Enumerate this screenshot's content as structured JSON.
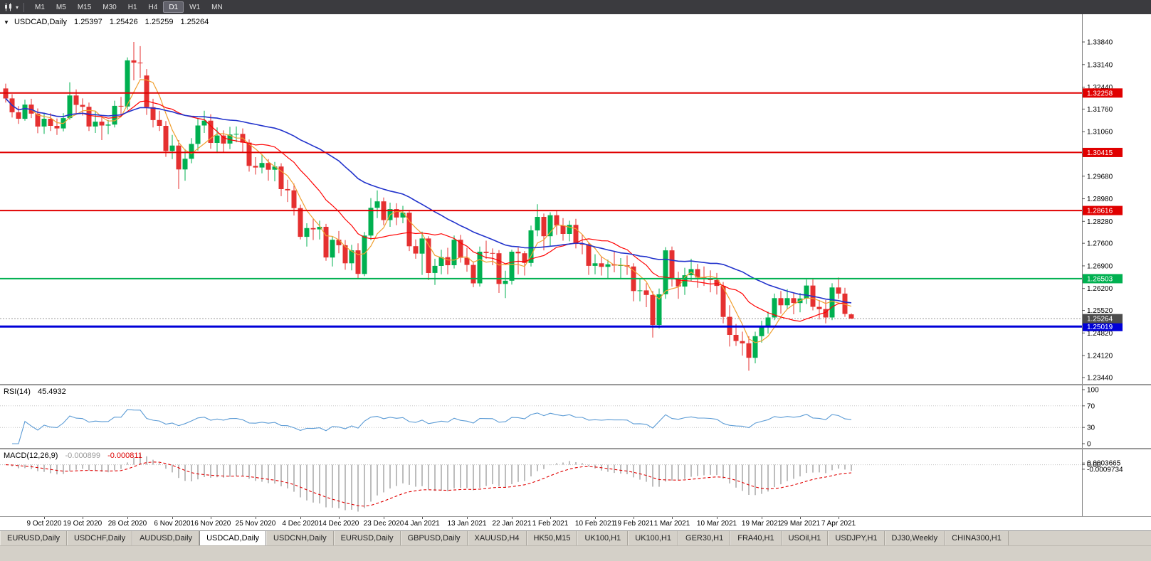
{
  "toolbar": {
    "chart_type_icon": "candlestick-chart-icon",
    "dropdown_icon": "chevron-down-icon",
    "timeframes": [
      "M1",
      "M5",
      "M15",
      "M30",
      "H1",
      "H4",
      "D1",
      "W1",
      "MN"
    ],
    "active_timeframe": "D1"
  },
  "header": {
    "symbol": "USDCAD,Daily",
    "open": "1.25397",
    "high": "1.25426",
    "low": "1.25259",
    "close": "1.25264"
  },
  "price_axis": {
    "min": 1.2324,
    "max": 1.347,
    "labels": [
      "1.33840",
      "1.33140",
      "1.32440",
      "1.31760",
      "1.31060",
      "1.30360",
      "1.29680",
      "1.28980",
      "1.28280",
      "1.27600",
      "1.26900",
      "1.26200",
      "1.25520",
      "1.24820",
      "1.24120",
      "1.23440"
    ]
  },
  "hlines": [
    {
      "value": 1.32258,
      "label": "1.32258",
      "color": "#e00000",
      "width": 2
    },
    {
      "value": 1.30415,
      "label": "1.30415",
      "color": "#e00000",
      "width": 2
    },
    {
      "value": 1.28616,
      "label": "1.28616",
      "color": "#e00000",
      "width": 2
    },
    {
      "value": 1.26503,
      "label": "1.26503",
      "color": "#00b050",
      "width": 2
    },
    {
      "value": 1.25019,
      "label": "1.25019",
      "color": "#0000d8",
      "width": 3
    }
  ],
  "current_price": {
    "value": 1.25264,
    "label": "1.25264",
    "tag_color": "#4d4d4d"
  },
  "chart_data": {
    "type": "candlestick",
    "symbol": "USDCAD",
    "timeframe": "Daily",
    "up_color": "#00b050",
    "down_color": "#e53030",
    "moving_averages": [
      {
        "period": 5,
        "color": "#f0a030",
        "width": 1.2
      },
      {
        "period": 13,
        "color": "#ff0000",
        "width": 1.2
      },
      {
        "period": 34,
        "color": "#2233cc",
        "width": 1.6
      }
    ],
    "candles": [
      [
        1.324,
        1.3255,
        1.3196,
        1.3209
      ],
      [
        1.3209,
        1.3222,
        1.315,
        1.3166
      ],
      [
        1.3166,
        1.3185,
        1.313,
        1.3146
      ],
      [
        1.3146,
        1.3205,
        1.314,
        1.319
      ],
      [
        1.319,
        1.3208,
        1.3148,
        1.3162
      ],
      [
        1.3162,
        1.3178,
        1.3101,
        1.3122
      ],
      [
        1.3122,
        1.3162,
        1.3099,
        1.3146
      ],
      [
        1.3146,
        1.3163,
        1.3108,
        1.3124
      ],
      [
        1.3124,
        1.3147,
        1.3096,
        1.3116
      ],
      [
        1.3116,
        1.3163,
        1.3107,
        1.3148
      ],
      [
        1.3148,
        1.3259,
        1.3143,
        1.3218
      ],
      [
        1.3218,
        1.3237,
        1.3163,
        1.3189
      ],
      [
        1.3189,
        1.3209,
        1.3156,
        1.3183
      ],
      [
        1.3183,
        1.3196,
        1.3108,
        1.3122
      ],
      [
        1.3122,
        1.3168,
        1.3102,
        1.3137
      ],
      [
        1.3137,
        1.3154,
        1.308,
        1.3125
      ],
      [
        1.3125,
        1.3142,
        1.3098,
        1.3128
      ],
      [
        1.3128,
        1.3202,
        1.3119,
        1.3186
      ],
      [
        1.3186,
        1.3214,
        1.3158,
        1.3184
      ],
      [
        1.3184,
        1.3336,
        1.3174,
        1.3327
      ],
      [
        1.3327,
        1.3384,
        1.3265,
        1.332
      ],
      [
        1.332,
        1.3371,
        1.3272,
        1.3319
      ],
      [
        1.328,
        1.33,
        1.3158,
        1.3182
      ],
      [
        1.3182,
        1.3208,
        1.3119,
        1.3142
      ],
      [
        1.3142,
        1.3171,
        1.3108,
        1.3124
      ],
      [
        1.3124,
        1.3139,
        1.3028,
        1.3046
      ],
      [
        1.3046,
        1.3096,
        1.3021,
        1.3063
      ],
      [
        1.3063,
        1.308,
        1.2928,
        1.2989
      ],
      [
        1.2989,
        1.3052,
        1.2954,
        1.3022
      ],
      [
        1.3022,
        1.3086,
        1.3008,
        1.3068
      ],
      [
        1.3068,
        1.3148,
        1.3047,
        1.3125
      ],
      [
        1.3125,
        1.3171,
        1.3102,
        1.314
      ],
      [
        1.314,
        1.316,
        1.3053,
        1.3071
      ],
      [
        1.3071,
        1.3119,
        1.304,
        1.3094
      ],
      [
        1.3094,
        1.311,
        1.3043,
        1.3069
      ],
      [
        1.3069,
        1.3121,
        1.3052,
        1.3097
      ],
      [
        1.3097,
        1.3122,
        1.3073,
        1.3099
      ],
      [
        1.3099,
        1.3116,
        1.3042,
        1.3072
      ],
      [
        1.3072,
        1.3082,
        1.2982,
        1.3
      ],
      [
        1.3,
        1.3027,
        1.2973,
        1.2995
      ],
      [
        1.2995,
        1.3034,
        1.2977,
        1.3009
      ],
      [
        1.3009,
        1.3021,
        1.2954,
        1.2988
      ],
      [
        1.2988,
        1.3012,
        1.2952,
        1.2998
      ],
      [
        1.2998,
        1.3008,
        1.2906,
        1.2928
      ],
      [
        1.2928,
        1.2957,
        1.2888,
        1.2924
      ],
      [
        1.2924,
        1.2945,
        1.2846,
        1.2869
      ],
      [
        1.2869,
        1.288,
        1.2772,
        1.278
      ],
      [
        1.278,
        1.2822,
        1.275,
        1.2807
      ],
      [
        1.2807,
        1.2835,
        1.277,
        1.2803
      ],
      [
        1.2803,
        1.283,
        1.2772,
        1.2811
      ],
      [
        1.2811,
        1.282,
        1.2706,
        1.2716
      ],
      [
        1.2716,
        1.2782,
        1.2688,
        1.2771
      ],
      [
        1.2771,
        1.2798,
        1.2729,
        1.2754
      ],
      [
        1.2754,
        1.277,
        1.2678,
        1.2698
      ],
      [
        1.2698,
        1.2755,
        1.2676,
        1.2738
      ],
      [
        1.2738,
        1.276,
        1.2652,
        1.2665
      ],
      [
        1.2665,
        1.2795,
        1.2658,
        1.2784
      ],
      [
        1.2784,
        1.29,
        1.277,
        1.287
      ],
      [
        1.287,
        1.2924,
        1.2838,
        1.289
      ],
      [
        1.289,
        1.2902,
        1.2816,
        1.2832
      ],
      [
        1.2832,
        1.2886,
        1.2811,
        1.2866
      ],
      [
        1.2866,
        1.2884,
        1.2816,
        1.284
      ],
      [
        1.284,
        1.2876,
        1.2822,
        1.2855
      ],
      [
        1.2855,
        1.2862,
        1.2736,
        1.2751
      ],
      [
        1.2751,
        1.2772,
        1.2712,
        1.2728
      ],
      [
        1.2728,
        1.2796,
        1.2662,
        1.2775
      ],
      [
        1.2775,
        1.2782,
        1.2646,
        1.2668
      ],
      [
        1.2668,
        1.2712,
        1.2631,
        1.269
      ],
      [
        1.269,
        1.274,
        1.2664,
        1.2717
      ],
      [
        1.2717,
        1.2746,
        1.2664,
        1.2692
      ],
      [
        1.2692,
        1.2784,
        1.2682,
        1.2771
      ],
      [
        1.2771,
        1.2786,
        1.27,
        1.2715
      ],
      [
        1.2715,
        1.2746,
        1.2672,
        1.2693
      ],
      [
        1.2693,
        1.2704,
        1.2624,
        1.2636
      ],
      [
        1.2636,
        1.275,
        1.2626,
        1.2734
      ],
      [
        1.2734,
        1.2768,
        1.2712,
        1.273
      ],
      [
        1.273,
        1.2744,
        1.2692,
        1.2729
      ],
      [
        1.2729,
        1.2739,
        1.2606,
        1.2634
      ],
      [
        1.2634,
        1.2675,
        1.259,
        1.2644
      ],
      [
        1.2644,
        1.274,
        1.2632,
        1.2734
      ],
      [
        1.2734,
        1.2747,
        1.2664,
        1.2729
      ],
      [
        1.2729,
        1.2736,
        1.266,
        1.2699
      ],
      [
        1.2699,
        1.2815,
        1.2688,
        1.28
      ],
      [
        1.28,
        1.2881,
        1.2782,
        1.2842
      ],
      [
        1.2842,
        1.2852,
        1.2738,
        1.2782
      ],
      [
        1.2782,
        1.2856,
        1.2752,
        1.2847
      ],
      [
        1.2847,
        1.2862,
        1.2786,
        1.2815
      ],
      [
        1.2815,
        1.2838,
        1.2768,
        1.2789
      ],
      [
        1.2789,
        1.283,
        1.2766,
        1.2817
      ],
      [
        1.2817,
        1.2836,
        1.2744,
        1.2758
      ],
      [
        1.2758,
        1.2786,
        1.2726,
        1.2757
      ],
      [
        1.2757,
        1.2762,
        1.2662,
        1.269
      ],
      [
        1.269,
        1.2726,
        1.2664,
        1.2698
      ],
      [
        1.2698,
        1.272,
        1.266,
        1.2687
      ],
      [
        1.2687,
        1.2709,
        1.2652,
        1.2695
      ],
      [
        1.2695,
        1.2736,
        1.267,
        1.2691
      ],
      [
        1.2691,
        1.2714,
        1.2649,
        1.2692
      ],
      [
        1.2692,
        1.2722,
        1.2662,
        1.2688
      ],
      [
        1.2688,
        1.2698,
        1.258,
        1.2612
      ],
      [
        1.2612,
        1.265,
        1.258,
        1.2614
      ],
      [
        1.2614,
        1.2636,
        1.2562,
        1.26
      ],
      [
        1.26,
        1.2612,
        1.2468,
        1.2507
      ],
      [
        1.2507,
        1.262,
        1.2496,
        1.2602
      ],
      [
        1.2602,
        1.2748,
        1.2588,
        1.2738
      ],
      [
        1.2738,
        1.275,
        1.2626,
        1.2648
      ],
      [
        1.2648,
        1.2672,
        1.2588,
        1.2626
      ],
      [
        1.2626,
        1.2684,
        1.26,
        1.2661
      ],
      [
        1.2661,
        1.2712,
        1.2642,
        1.268
      ],
      [
        1.268,
        1.2696,
        1.2622,
        1.2654
      ],
      [
        1.2654,
        1.2688,
        1.2628,
        1.2652
      ],
      [
        1.2652,
        1.2676,
        1.2608,
        1.2646
      ],
      [
        1.2646,
        1.2668,
        1.2601,
        1.2628
      ],
      [
        1.2628,
        1.264,
        1.2512,
        1.2532
      ],
      [
        1.2532,
        1.2568,
        1.244,
        1.2476
      ],
      [
        1.2476,
        1.251,
        1.2442,
        1.2457
      ],
      [
        1.2457,
        1.2486,
        1.2412,
        1.245
      ],
      [
        1.245,
        1.2472,
        1.2365,
        1.2405
      ],
      [
        1.2405,
        1.2486,
        1.2388,
        1.2472
      ],
      [
        1.2472,
        1.252,
        1.2452,
        1.2502
      ],
      [
        1.2502,
        1.2548,
        1.248,
        1.253
      ],
      [
        1.253,
        1.2604,
        1.2522,
        1.259
      ],
      [
        1.259,
        1.2612,
        1.2542,
        1.2568
      ],
      [
        1.2568,
        1.2618,
        1.2556,
        1.259
      ],
      [
        1.259,
        1.2606,
        1.254,
        1.2575
      ],
      [
        1.2575,
        1.2606,
        1.2546,
        1.2589
      ],
      [
        1.2589,
        1.2648,
        1.2572,
        1.2629
      ],
      [
        1.2629,
        1.265,
        1.2552,
        1.2563
      ],
      [
        1.2563,
        1.2584,
        1.2524,
        1.2556
      ],
      [
        1.2556,
        1.2584,
        1.2512,
        1.253
      ],
      [
        1.253,
        1.2636,
        1.2522,
        1.2623
      ],
      [
        1.2623,
        1.2654,
        1.2588,
        1.2604
      ],
      [
        1.2604,
        1.2622,
        1.2532,
        1.2541
      ],
      [
        1.25397,
        1.25426,
        1.25259,
        1.25264
      ]
    ],
    "time_labels": [
      {
        "text": "9 Oct 2020",
        "index": 6
      },
      {
        "text": "19 Oct 2020",
        "index": 12
      },
      {
        "text": "28 Oct 2020",
        "index": 19
      },
      {
        "text": "6 Nov 2020",
        "index": 26
      },
      {
        "text": "16 Nov 2020",
        "index": 32
      },
      {
        "text": "25 Nov 2020",
        "index": 39
      },
      {
        "text": "4 Dec 2020",
        "index": 46
      },
      {
        "text": "14 Dec 2020",
        "index": 52
      },
      {
        "text": "23 Dec 2020",
        "index": 59
      },
      {
        "text": "4 Jan 2021",
        "index": 65
      },
      {
        "text": "13 Jan 2021",
        "index": 72
      },
      {
        "text": "22 Jan 2021",
        "index": 79
      },
      {
        "text": "1 Feb 2021",
        "index": 85
      },
      {
        "text": "10 Feb 2021",
        "index": 92
      },
      {
        "text": "19 Feb 2021",
        "index": 98
      },
      {
        "text": "1 Mar 2021",
        "index": 104
      },
      {
        "text": "10 Mar 2021",
        "index": 111
      },
      {
        "text": "19 Mar 2021",
        "index": 118
      },
      {
        "text": "29 Mar 2021",
        "index": 124
      },
      {
        "text": "7 Apr 2021",
        "index": 130
      }
    ]
  },
  "rsi": {
    "label": "RSI(14)",
    "value": "45.4932",
    "period": 14,
    "levels": [
      100,
      70,
      30,
      0
    ],
    "levels_dotted": [
      70,
      30
    ],
    "line_color": "#5b9bd5"
  },
  "macd": {
    "label": "MACD(12,26,9)",
    "main_value": "-0.000899",
    "signal_value": "-0.000811",
    "fast": 12,
    "slow": 26,
    "signal_period": 9,
    "axis_labels": [
      "0.0003665",
      "0.00",
      "-0.0009734"
    ],
    "histogram_color": "#bdbdbd",
    "signal_color": "#e00000"
  },
  "tabs": [
    "EURUSD,Daily",
    "USDCHF,Daily",
    "AUDUSD,Daily",
    "USDCAD,Daily",
    "USDCNH,Daily",
    "EURUSD,Daily",
    "GBPUSD,Daily",
    "XAUUSD,H4",
    "HK50,M15",
    "UK100,H1",
    "UK100,H1",
    "GER30,H1",
    "FRA40,H1",
    "USOil,H1",
    "USDJPY,H1",
    "DJ30,Weekly",
    "CHINA300,H1"
  ],
  "active_tab_index": 3
}
